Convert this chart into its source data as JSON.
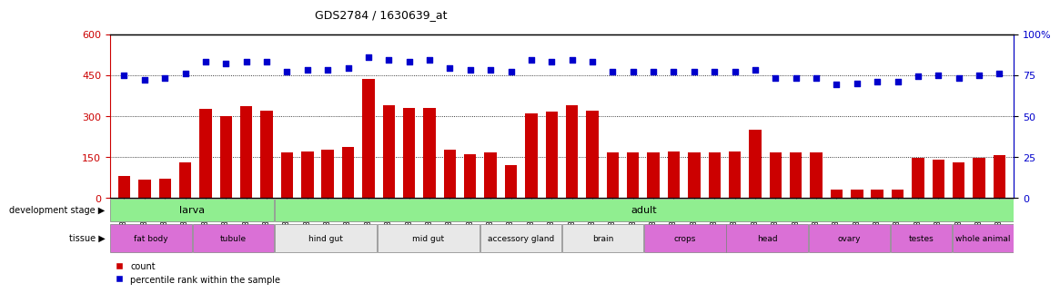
{
  "title": "GDS2784 / 1630639_at",
  "samples": [
    "GSM188092",
    "GSM188093",
    "GSM188094",
    "GSM188095",
    "GSM188100",
    "GSM188101",
    "GSM188102",
    "GSM188103",
    "GSM188072",
    "GSM188073",
    "GSM188074",
    "GSM188075",
    "GSM188076",
    "GSM188077",
    "GSM188078",
    "GSM188079",
    "GSM188080",
    "GSM188081",
    "GSM188082",
    "GSM188083",
    "GSM188084",
    "GSM188085",
    "GSM188086",
    "GSM188087",
    "GSM188088",
    "GSM188089",
    "GSM188090",
    "GSM188091",
    "GSM188096",
    "GSM188097",
    "GSM188098",
    "GSM188099",
    "GSM188104",
    "GSM188105",
    "GSM188106",
    "GSM188107",
    "GSM188108",
    "GSM188109",
    "GSM188110",
    "GSM188111",
    "GSM188112",
    "GSM188113",
    "GSM188114",
    "GSM188115"
  ],
  "counts": [
    80,
    65,
    70,
    130,
    325,
    300,
    335,
    320,
    165,
    170,
    175,
    185,
    435,
    340,
    330,
    330,
    175,
    160,
    165,
    120,
    310,
    315,
    340,
    320,
    165,
    165,
    165,
    170,
    165,
    165,
    170,
    250,
    165,
    165,
    165,
    30,
    30,
    30,
    30,
    145,
    140,
    130,
    145,
    155
  ],
  "percentiles": [
    75,
    72,
    73,
    76,
    83,
    82,
    83,
    83,
    77,
    78,
    78,
    79,
    86,
    84,
    83,
    84,
    79,
    78,
    78,
    77,
    84,
    83,
    84,
    83,
    77,
    77,
    77,
    77,
    77,
    77,
    77,
    78,
    73,
    73,
    73,
    69,
    70,
    71,
    71,
    74,
    75,
    73,
    75,
    76
  ],
  "ylim_left": [
    0,
    600
  ],
  "ylim_right": [
    0,
    100
  ],
  "yticks_left": [
    0,
    150,
    300,
    450,
    600
  ],
  "yticks_right": [
    0,
    25,
    50,
    75,
    100
  ],
  "bar_color": "#cc0000",
  "dot_color": "#0000cc",
  "fig_bg": "#ffffff",
  "plot_bg": "#ffffff",
  "dev_stages": [
    {
      "label": "larva",
      "start": 0,
      "end": 8,
      "color": "#90ee90"
    },
    {
      "label": "adult",
      "start": 8,
      "end": 44,
      "color": "#90ee90"
    }
  ],
  "tissues": [
    {
      "label": "fat body",
      "start": 0,
      "end": 4,
      "color": "#da70d6"
    },
    {
      "label": "tubule",
      "start": 4,
      "end": 8,
      "color": "#da70d6"
    },
    {
      "label": "hind gut",
      "start": 8,
      "end": 13,
      "color": "#e8e8e8"
    },
    {
      "label": "mid gut",
      "start": 13,
      "end": 18,
      "color": "#e8e8e8"
    },
    {
      "label": "accessory gland",
      "start": 18,
      "end": 22,
      "color": "#e8e8e8"
    },
    {
      "label": "brain",
      "start": 22,
      "end": 26,
      "color": "#e8e8e8"
    },
    {
      "label": "crops",
      "start": 26,
      "end": 30,
      "color": "#da70d6"
    },
    {
      "label": "head",
      "start": 30,
      "end": 34,
      "color": "#da70d6"
    },
    {
      "label": "ovary",
      "start": 34,
      "end": 38,
      "color": "#da70d6"
    },
    {
      "label": "testes",
      "start": 38,
      "end": 41,
      "color": "#da70d6"
    },
    {
      "label": "whole animal",
      "start": 41,
      "end": 44,
      "color": "#da70d6"
    }
  ]
}
